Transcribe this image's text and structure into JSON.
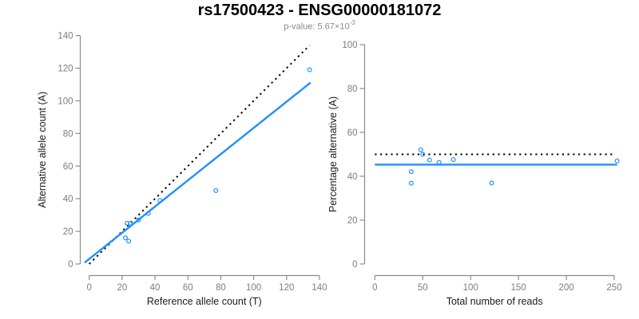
{
  "header": {
    "title": "rs17500423 - ENSG00000181072",
    "subtitle_prefix": "p-value: 5.67×10",
    "subtitle_exponent": "-3"
  },
  "colors": {
    "accent_blue": "#1E90FF",
    "dotted_line": "#000000",
    "axis": "#8B8B8B",
    "tick_text": "#7D7D7D",
    "axis_title_text": "#1A1A1A",
    "title_text": "#000000",
    "subtitle_text": "#8A8A8A"
  },
  "chart_data": [
    {
      "type": "scatter",
      "name": "allele-counts-panel",
      "xlabel": "Reference allele count (T)",
      "ylabel": "Alternative allele count (A)",
      "xlim": [
        0,
        140
      ],
      "ylim": [
        0,
        140
      ],
      "xticks": [
        0,
        20,
        40,
        60,
        80,
        100,
        120,
        140
      ],
      "yticks": [
        0,
        20,
        40,
        60,
        80,
        100,
        120,
        140
      ],
      "grid": false,
      "legend": null,
      "points": [
        [
          134,
          119
        ],
        [
          77,
          45
        ],
        [
          43,
          39
        ],
        [
          36,
          31
        ],
        [
          30,
          27
        ],
        [
          25,
          25
        ],
        [
          23,
          25
        ],
        [
          24,
          14
        ],
        [
          22,
          16
        ]
      ],
      "lines": [
        {
          "name": "identity-line",
          "style": "dotted",
          "color": "#000000",
          "from": [
            0,
            0
          ],
          "to": [
            134,
            134
          ]
        },
        {
          "name": "fit-line",
          "style": "solid",
          "color": "#1E90FF",
          "from": [
            -2.8,
            0.8
          ],
          "to": [
            134.6,
            111.2
          ]
        }
      ]
    },
    {
      "type": "scatter",
      "name": "percentage-vs-reads-panel",
      "xlabel": "Total number of reads",
      "ylabel": "Percentage alternative (A)",
      "xlim": [
        0,
        250
      ],
      "ylim": [
        0,
        100
      ],
      "xticks": [
        0,
        50,
        100,
        150,
        200,
        250
      ],
      "yticks": [
        0,
        20,
        40,
        60,
        80,
        100
      ],
      "grid": false,
      "legend": null,
      "points": [
        [
          253,
          47.0
        ],
        [
          122,
          36.9
        ],
        [
          82,
          47.6
        ],
        [
          67,
          46.3
        ],
        [
          57,
          47.4
        ],
        [
          50,
          50.0
        ],
        [
          48,
          52.1
        ],
        [
          38,
          42.1
        ],
        [
          38,
          36.8
        ]
      ],
      "lines": [
        {
          "name": "null-line",
          "style": "dotted",
          "color": "#000000",
          "from": [
            0,
            50
          ],
          "to": [
            249,
            50
          ]
        },
        {
          "name": "fit-line",
          "style": "solid",
          "color": "#1E90FF",
          "from": [
            0,
            45.3
          ],
          "to": [
            253,
            45.3
          ]
        }
      ]
    }
  ]
}
